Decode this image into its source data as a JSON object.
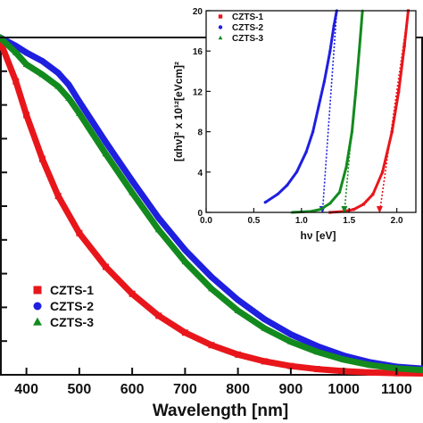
{
  "chart_data": [
    {
      "type": "scatter",
      "xlabel": "Wavelength [nm]",
      "ylabel": "",
      "xlim": [
        350,
        1150
      ],
      "ylim": [
        0,
        1
      ],
      "xticks": [
        400,
        500,
        600,
        700,
        800,
        900,
        1000,
        1100
      ],
      "xtick_labels": [
        "400",
        "500",
        "600",
        "700",
        "800",
        "900",
        "1000",
        "1100"
      ],
      "legend_position": "bottom-left",
      "series": [
        {
          "name": "CZTS-1",
          "color": "#e8161b",
          "marker": "square",
          "x": [
            350,
            380,
            400,
            430,
            460,
            500,
            550,
            600,
            650,
            700,
            750,
            800,
            850,
            900,
            950,
            1000,
            1050,
            1100,
            1150
          ],
          "y": [
            0.99,
            0.87,
            0.77,
            0.64,
            0.53,
            0.42,
            0.32,
            0.24,
            0.175,
            0.125,
            0.088,
            0.06,
            0.04,
            0.026,
            0.017,
            0.011,
            0.007,
            0.005,
            0.004
          ]
        },
        {
          "name": "CZTS-2",
          "color": "#1f1fe0",
          "marker": "circle",
          "x": [
            350,
            380,
            400,
            430,
            460,
            480,
            500,
            550,
            600,
            650,
            700,
            750,
            800,
            850,
            900,
            950,
            1000,
            1050,
            1100,
            1150
          ],
          "y": [
            1.0,
            0.975,
            0.955,
            0.93,
            0.895,
            0.86,
            0.81,
            0.69,
            0.575,
            0.465,
            0.37,
            0.29,
            0.222,
            0.165,
            0.12,
            0.085,
            0.057,
            0.037,
            0.024,
            0.018
          ]
        },
        {
          "name": "CZTS-3",
          "color": "#138a1e",
          "marker": "triangle",
          "x": [
            350,
            380,
            400,
            430,
            460,
            480,
            500,
            550,
            600,
            650,
            700,
            750,
            800,
            850,
            900,
            950,
            1000,
            1050,
            1100,
            1150
          ],
          "y": [
            1.0,
            0.955,
            0.92,
            0.89,
            0.855,
            0.82,
            0.775,
            0.655,
            0.54,
            0.43,
            0.335,
            0.255,
            0.19,
            0.138,
            0.098,
            0.068,
            0.045,
            0.029,
            0.019,
            0.014
          ]
        }
      ]
    },
    {
      "type": "scatter",
      "title": "",
      "xlabel": "hν [eV]",
      "ylabel": "[αhν]² x 10¹²[eVcm]²",
      "xlim": [
        0,
        2.2
      ],
      "ylim": [
        0,
        20
      ],
      "xticks": [
        0.0,
        0.5,
        1.0,
        1.5,
        2.0
      ],
      "xtick_labels": [
        "0.0",
        "0.5",
        "1.0",
        "1.5",
        "2.0"
      ],
      "yticks": [
        0,
        4,
        8,
        12,
        16,
        20
      ],
      "ytick_labels": [
        "0",
        "4",
        "8",
        "12",
        "16",
        "20"
      ],
      "legend_position": "top-left",
      "series": [
        {
          "name": "CZTS-1",
          "color": "#e8161b",
          "marker": "square",
          "x": [
            1.3,
            1.45,
            1.55,
            1.65,
            1.75,
            1.85,
            1.95,
            2.02,
            2.08,
            2.12
          ],
          "y": [
            0.0,
            0.1,
            0.3,
            0.8,
            1.8,
            4.0,
            8.0,
            12.0,
            16.5,
            20.0
          ],
          "bandgap": 1.82
        },
        {
          "name": "CZTS-2",
          "color": "#1f1fe0",
          "marker": "circle",
          "x": [
            0.62,
            0.75,
            0.85,
            0.95,
            1.05,
            1.12,
            1.18,
            1.24,
            1.3,
            1.34,
            1.37
          ],
          "y": [
            1.0,
            1.8,
            2.7,
            4.0,
            6.0,
            8.0,
            10.5,
            13.0,
            16.0,
            18.5,
            20.0
          ],
          "bandgap": 1.22
        },
        {
          "name": "CZTS-3",
          "color": "#138a1e",
          "marker": "triangle",
          "x": [
            0.9,
            1.1,
            1.2,
            1.3,
            1.4,
            1.47,
            1.53,
            1.57,
            1.61,
            1.64
          ],
          "y": [
            0.0,
            0.1,
            0.3,
            0.9,
            2.0,
            4.5,
            8.0,
            12.0,
            16.5,
            20.0
          ],
          "bandgap": 1.45
        }
      ]
    }
  ]
}
